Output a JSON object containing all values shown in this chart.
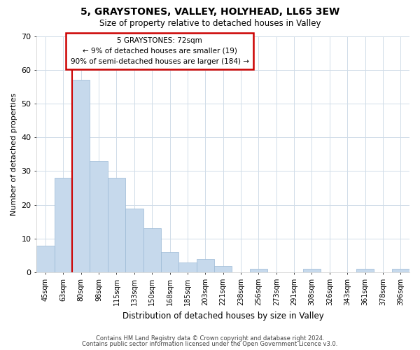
{
  "title": "5, GRAYSTONES, VALLEY, HOLYHEAD, LL65 3EW",
  "subtitle": "Size of property relative to detached houses in Valley",
  "xlabel": "Distribution of detached houses by size in Valley",
  "ylabel": "Number of detached properties",
  "bar_labels": [
    "45sqm",
    "63sqm",
    "80sqm",
    "98sqm",
    "115sqm",
    "133sqm",
    "150sqm",
    "168sqm",
    "185sqm",
    "203sqm",
    "221sqm",
    "238sqm",
    "256sqm",
    "273sqm",
    "291sqm",
    "308sqm",
    "326sqm",
    "343sqm",
    "361sqm",
    "378sqm",
    "396sqm"
  ],
  "bar_heights": [
    8,
    28,
    57,
    33,
    28,
    19,
    13,
    6,
    3,
    4,
    2,
    0,
    1,
    0,
    0,
    1,
    0,
    0,
    1,
    0,
    1
  ],
  "bar_color": "#c6d9ec",
  "bar_edge_color": "#9ab8d4",
  "ylim": [
    0,
    70
  ],
  "yticks": [
    0,
    10,
    20,
    30,
    40,
    50,
    60,
    70
  ],
  "marker_line_color": "#cc0000",
  "annotation_title": "5 GRAYSTONES: 72sqm",
  "annotation_line1": "← 9% of detached houses are smaller (19)",
  "annotation_line2": "90% of semi-detached houses are larger (184) →",
  "annotation_box_color": "#cc0000",
  "annotation_box_facecolor": "#ffffff",
  "footer_line1": "Contains HM Land Registry data © Crown copyright and database right 2024.",
  "footer_line2": "Contains public sector information licensed under the Open Government Licence v3.0.",
  "background_color": "#ffffff",
  "grid_color": "#d0dce8"
}
